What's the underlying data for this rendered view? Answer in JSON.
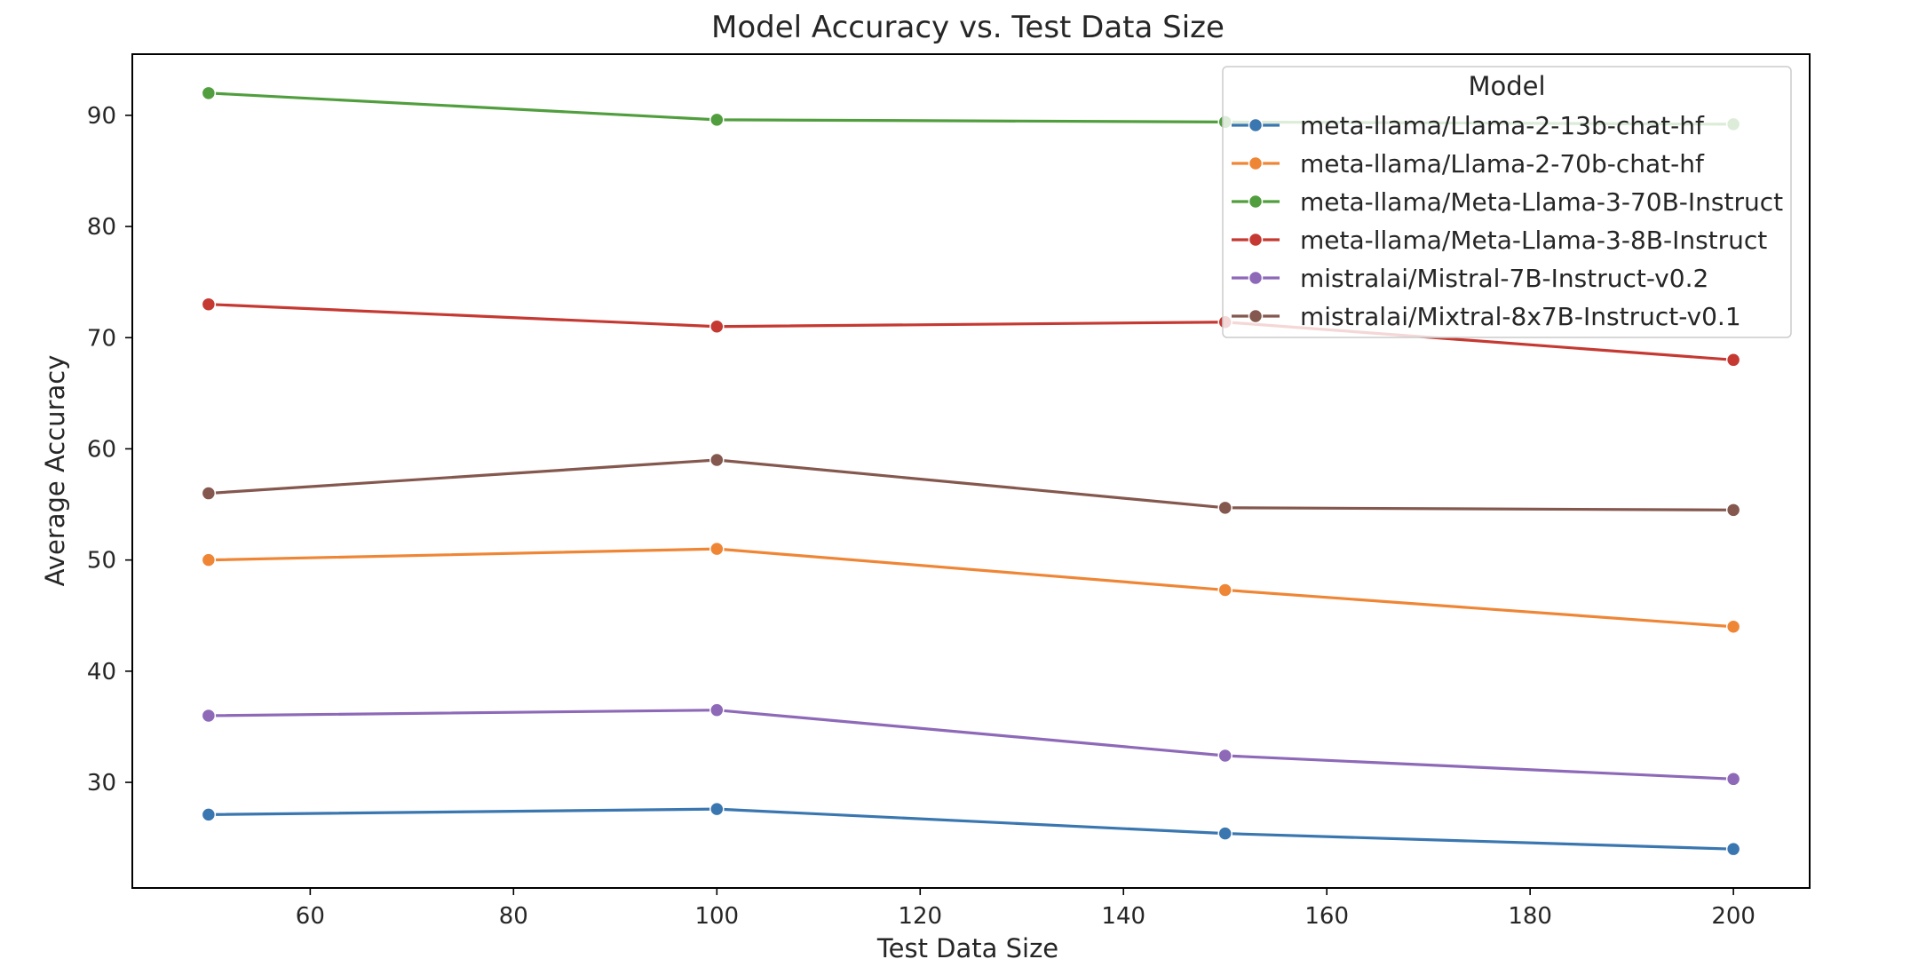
{
  "chart_data": {
    "type": "line",
    "title": "Model Accuracy vs. Test Data Size",
    "xlabel": "Test Data Size",
    "ylabel": "Average Accuracy",
    "xlim": [
      42.5,
      207.5
    ],
    "ylim": [
      20.5,
      95.5
    ],
    "xticks": [
      60,
      80,
      100,
      120,
      140,
      160,
      180,
      200
    ],
    "yticks": [
      30,
      40,
      50,
      60,
      70,
      80,
      90
    ],
    "grid": false,
    "legend": {
      "title": "Model",
      "placement": "top-right"
    },
    "x": [
      50,
      100,
      150,
      200
    ],
    "series": [
      {
        "name": "meta-llama/Llama-2-13b-chat-hf",
        "color": "#3a76af",
        "values": [
          27.1,
          27.6,
          25.4,
          24.0
        ]
      },
      {
        "name": "meta-llama/Llama-2-70b-chat-hf",
        "color": "#ef8636",
        "values": [
          50.0,
          51.0,
          47.3,
          44.0
        ]
      },
      {
        "name": "meta-llama/Meta-Llama-3-70B-Instruct",
        "color": "#519e3e",
        "values": [
          92.0,
          89.6,
          89.4,
          89.2
        ]
      },
      {
        "name": "meta-llama/Meta-Llama-3-8B-Instruct",
        "color": "#c53932",
        "values": [
          73.0,
          71.0,
          71.4,
          68.0
        ]
      },
      {
        "name": "mistralai/Mistral-7B-Instruct-v0.2",
        "color": "#8d69b8",
        "values": [
          36.0,
          36.5,
          32.4,
          30.3
        ]
      },
      {
        "name": "mistralai/Mixtral-8x7B-Instruct-v0.1",
        "color": "#84584e",
        "values": [
          56.0,
          59.0,
          54.7,
          54.5
        ]
      }
    ]
  }
}
